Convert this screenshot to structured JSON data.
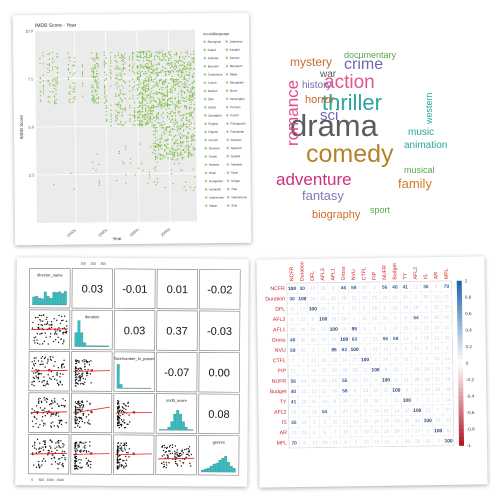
{
  "chart_data": [
    {
      "type": "scatter",
      "title": "IMDB Score - Year",
      "xlabel": "Year",
      "ylabel": "IMDB Score",
      "x_tick_labels": [
        "1940s",
        "1960s",
        "1980s",
        "2000s"
      ],
      "y_tick_labels": [
        "2.5",
        "5.0",
        "7.5",
        "10.0"
      ],
      "ylim": [
        0,
        10
      ],
      "xlim": [
        1915,
        2017
      ],
      "point_color": "#7cc043",
      "legend_title": "movie$language",
      "legend": [
        "Aboriginal",
        "Arabic",
        "Aramaic",
        "Bosnian",
        "Cantonese",
        "Czech",
        "Danish",
        "Dari",
        "Dutch",
        "Dzongkha",
        "English",
        "Filipino",
        "French",
        "German",
        "Greek",
        "Hebrew",
        "Hindi",
        "Hungarian",
        "Icelandic",
        "Indonesian",
        "Italian",
        "Japanese",
        "Kazakh",
        "Korean",
        "Mandarin",
        "Maya",
        "Mongolian",
        "None",
        "Norwegian",
        "Persian",
        "Polish",
        "Portuguese",
        "Romanian",
        "Russian",
        "Spanish",
        "Swahili",
        "Swedish",
        "Tamil",
        "Telugu",
        "Thai",
        "Vietnamese",
        "Zulu"
      ]
    },
    {
      "type": "wordcloud",
      "words": [
        {
          "text": "drama",
          "weight": 100,
          "color": "#5c5c5c"
        },
        {
          "text": "comedy",
          "weight": 85,
          "color": "#b5812a"
        },
        {
          "text": "thriller",
          "weight": 72,
          "color": "#2aa69e"
        },
        {
          "text": "action",
          "weight": 62,
          "color": "#e0568b"
        },
        {
          "text": "romance",
          "weight": 60,
          "color": "#e04a8c"
        },
        {
          "text": "adventure",
          "weight": 58,
          "color": "#cf2f7d"
        },
        {
          "text": "crime",
          "weight": 52,
          "color": "#7466ad"
        },
        {
          "text": "family",
          "weight": 42,
          "color": "#d5782a"
        },
        {
          "text": "fantasy",
          "weight": 40,
          "color": "#7f7ab8"
        },
        {
          "text": "sci",
          "weight": 40,
          "color": "#7466ad"
        },
        {
          "text": "mystery",
          "weight": 36,
          "color": "#c96a2a"
        },
        {
          "text": "horror",
          "weight": 34,
          "color": "#d06a2a"
        },
        {
          "text": "music",
          "weight": 32,
          "color": "#2aa69e"
        },
        {
          "text": "animation",
          "weight": 32,
          "color": "#2aa69e"
        },
        {
          "text": "biography",
          "weight": 32,
          "color": "#d06a2a"
        },
        {
          "text": "war",
          "weight": 30,
          "color": "#5c5c5c"
        },
        {
          "text": "history",
          "weight": 30,
          "color": "#7466ad"
        },
        {
          "text": "documentary",
          "weight": 28,
          "color": "#5aa84a"
        },
        {
          "text": "western",
          "weight": 28,
          "color": "#2aa69e"
        },
        {
          "text": "musical",
          "weight": 28,
          "color": "#5aa84a"
        },
        {
          "text": "sport",
          "weight": 28,
          "color": "#5aa84a"
        }
      ]
    },
    {
      "type": "pairs",
      "variables": [
        "director_name",
        "duration",
        "facenumber_in_poster",
        "imdb_score",
        "genres"
      ],
      "correlations": [
        {
          "row": 0,
          "col": 1,
          "value": "0.03"
        },
        {
          "row": 0,
          "col": 2,
          "value": "-0.01"
        },
        {
          "row": 0,
          "col": 3,
          "value": "0.01"
        },
        {
          "row": 0,
          "col": 4,
          "value": "-0.02"
        },
        {
          "row": 1,
          "col": 2,
          "value": "0.03"
        },
        {
          "row": 1,
          "col": 3,
          "value": "0.37"
        },
        {
          "row": 1,
          "col": 4,
          "value": "-0.03"
        },
        {
          "row": 2,
          "col": 3,
          "value": "-0.07"
        },
        {
          "row": 2,
          "col": 4,
          "value": "0.00"
        },
        {
          "row": 3,
          "col": 4,
          "value": "0.08"
        }
      ],
      "axis_ticks": [
        "0",
        "500",
        "1000",
        "1500",
        "100",
        "200",
        "300"
      ],
      "point_color": "#111111",
      "hist_color": "#2ec4c8",
      "fit_color": "#e41a1c"
    },
    {
      "type": "heatmap",
      "labels": [
        "NCFR",
        "Duration",
        "DFL",
        "AFL3",
        "AFL1",
        "Gross",
        "NVU",
        "CTFL",
        "FIP",
        "NUFR",
        "Budget",
        "TY",
        "AFL2",
        "IS",
        "AR",
        "MFL"
      ],
      "values": [
        [
          100,
          30,
          null,
          null,
          null,
          46,
          59,
          null,
          null,
          56,
          40,
          41,
          null,
          35,
          null,
          70
        ],
        [
          30,
          100,
          null,
          null,
          null,
          null,
          null,
          null,
          null,
          null,
          null,
          null,
          null,
          null,
          null,
          null
        ],
        [
          null,
          null,
          100,
          null,
          null,
          null,
          null,
          null,
          null,
          null,
          null,
          null,
          null,
          null,
          null,
          null
        ],
        [
          null,
          null,
          null,
          100,
          null,
          null,
          null,
          null,
          null,
          null,
          null,
          null,
          54,
          null,
          null,
          null
        ],
        [
          null,
          null,
          null,
          null,
          100,
          null,
          95,
          null,
          null,
          null,
          null,
          null,
          null,
          null,
          null,
          null
        ],
        [
          46,
          null,
          null,
          null,
          null,
          100,
          63,
          null,
          null,
          55,
          58,
          null,
          null,
          null,
          null,
          null
        ],
        [
          59,
          null,
          null,
          null,
          95,
          63,
          100,
          null,
          null,
          null,
          null,
          null,
          null,
          null,
          null,
          null
        ],
        [
          null,
          null,
          null,
          null,
          null,
          null,
          null,
          100,
          null,
          null,
          null,
          null,
          null,
          null,
          null,
          null
        ],
        [
          null,
          null,
          null,
          null,
          null,
          null,
          null,
          null,
          100,
          null,
          null,
          null,
          null,
          null,
          null,
          null
        ],
        [
          56,
          null,
          null,
          null,
          null,
          55,
          null,
          null,
          null,
          100,
          null,
          null,
          null,
          null,
          null,
          null
        ],
        [
          40,
          null,
          null,
          null,
          null,
          58,
          null,
          null,
          null,
          null,
          100,
          null,
          null,
          null,
          null,
          null
        ],
        [
          41,
          null,
          null,
          null,
          null,
          null,
          null,
          null,
          null,
          null,
          null,
          100,
          null,
          null,
          null,
          null
        ],
        [
          null,
          null,
          null,
          54,
          null,
          null,
          null,
          null,
          null,
          null,
          null,
          null,
          100,
          null,
          null,
          null
        ],
        [
          35,
          null,
          null,
          null,
          null,
          null,
          null,
          null,
          null,
          null,
          null,
          null,
          null,
          100,
          null,
          null
        ],
        [
          null,
          null,
          null,
          null,
          null,
          null,
          null,
          null,
          null,
          null,
          null,
          null,
          null,
          null,
          100,
          null
        ],
        [
          70,
          null,
          null,
          null,
          null,
          null,
          null,
          null,
          null,
          null,
          null,
          null,
          null,
          null,
          null,
          100
        ]
      ],
      "colorbar_ticks": [
        "1",
        "0.8",
        "0.6",
        "0.4",
        "0.2",
        "0",
        "-0.2",
        "-0.4",
        "-0.6",
        "-0.8",
        "-1"
      ],
      "positive_color": "#2166ac",
      "negative_color": "#b2182b",
      "label_color": "#cc2222"
    }
  ]
}
